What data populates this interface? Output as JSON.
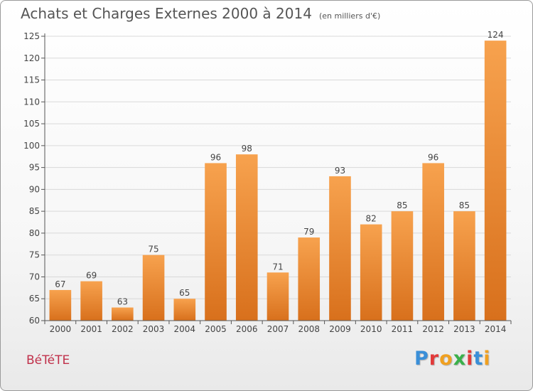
{
  "header": {
    "title": "Achats et Charges Externes 2000 à 2014",
    "unit": "(en milliers d'€)"
  },
  "footer": {
    "commune": "BéTéTE",
    "logo_letters": [
      "P",
      "r",
      "o",
      "x",
      "i",
      "t",
      "i"
    ],
    "logo_colors": [
      "#3a8fd8",
      "#e23a3a",
      "#f0a020",
      "#3ab04a",
      "#e23a3a",
      "#3a8fd8",
      "#f0a020"
    ]
  },
  "colors": {
    "bar_light": "#f7a24e",
    "bar_dark": "#d8701c",
    "grid": "#d9d9d9",
    "axis": "#555555",
    "text": "#444444"
  },
  "chart_data": {
    "type": "bar",
    "title": "Achats et Charges Externes 2000 à 2014",
    "subtitle": "(en milliers d'€)",
    "categories": [
      "2000",
      "2001",
      "2002",
      "2003",
      "2004",
      "2005",
      "2006",
      "2007",
      "2008",
      "2009",
      "2010",
      "2011",
      "2012",
      "2013",
      "2014"
    ],
    "values": [
      67,
      69,
      63,
      75,
      65,
      96,
      98,
      71,
      79,
      93,
      82,
      85,
      96,
      85,
      124
    ],
    "ylim": [
      60,
      125
    ],
    "yticks": [
      60,
      65,
      70,
      75,
      80,
      85,
      90,
      95,
      100,
      105,
      110,
      115,
      120,
      125
    ],
    "grid": true,
    "data_labels": true
  }
}
